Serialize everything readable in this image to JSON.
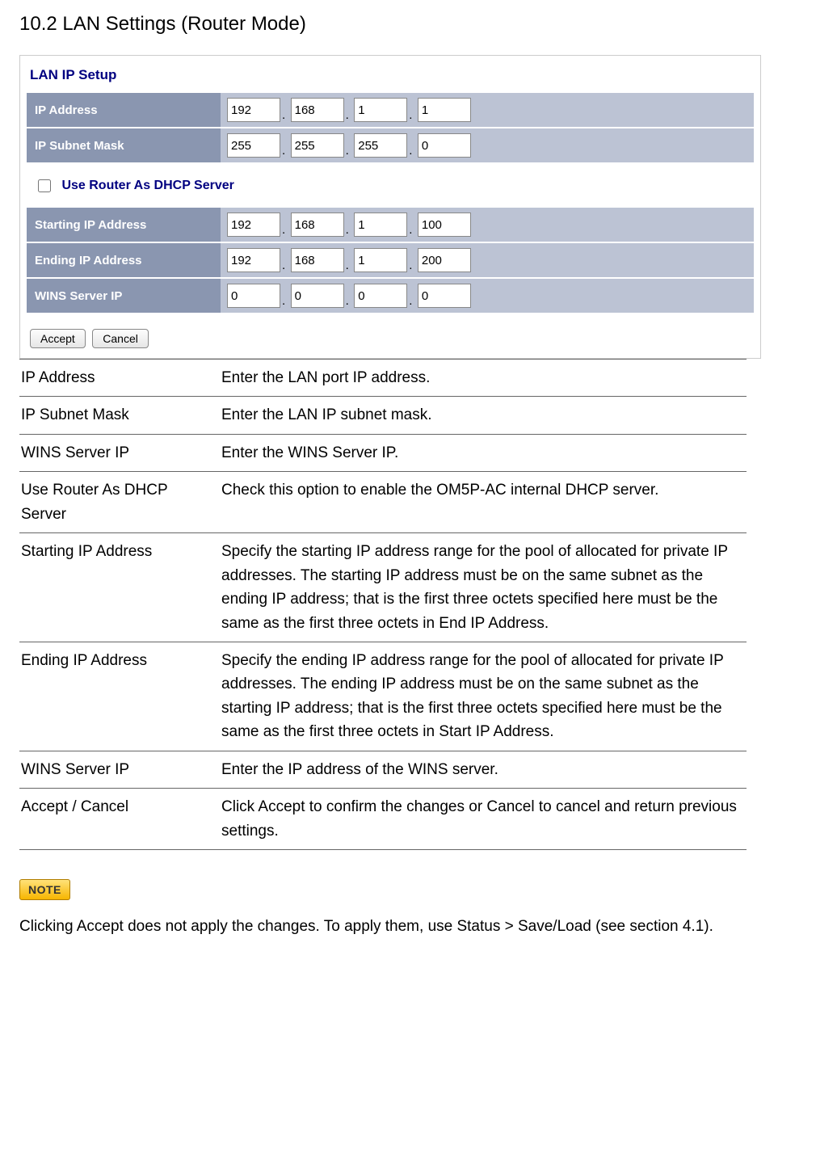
{
  "heading": "10.2 LAN Settings (Router Mode)",
  "panel": {
    "title": "LAN IP Setup",
    "ip_address": {
      "label": "IP Address",
      "o1": "192",
      "o2": "168",
      "o3": "1",
      "o4": "1"
    },
    "subnet_mask": {
      "label": "IP Subnet Mask",
      "o1": "255",
      "o2": "255",
      "o3": "255",
      "o4": "0"
    },
    "dhcp_checkbox_label": "Use Router As DHCP Server",
    "starting_ip": {
      "label": "Starting IP Address",
      "o1": "192",
      "o2": "168",
      "o3": "1",
      "o4": "100"
    },
    "ending_ip": {
      "label": "Ending IP Address",
      "o1": "192",
      "o2": "168",
      "o3": "1",
      "o4": "200"
    },
    "wins_ip": {
      "label": "WINS Server IP",
      "o1": "0",
      "o2": "0",
      "o3": "0",
      "o4": "0"
    },
    "accept_btn": "Accept",
    "cancel_btn": "Cancel"
  },
  "desc": {
    "r1": {
      "term": "IP Address",
      "text": "Enter the LAN port IP address."
    },
    "r2": {
      "term": "IP Subnet Mask",
      "text": "Enter the LAN IP subnet mask."
    },
    "r3": {
      "term": "WINS Server IP",
      "text": "Enter the WINS Server IP."
    },
    "r4": {
      "term": "Use Router As DHCP Server",
      "text": "Check this option to enable the OM5P-AC internal DHCP server."
    },
    "r5": {
      "term": "Starting IP Address",
      "text": "Specify the starting IP address range for the pool of allocated for private IP addresses. The starting IP address must be on the same subnet as the ending IP address; that is the first three octets specified here must be the same as the first three octets in End IP Address."
    },
    "r6": {
      "term": "Ending IP Address",
      "text": "Specify the ending IP address range for the pool of allocated for private IP addresses. The ending IP address must be on the same subnet as the starting IP address; that is the first three octets specified here must be the same as the first three octets in Start IP Address."
    },
    "r7": {
      "term": "WINS Server IP",
      "text": "Enter the IP address of the WINS server."
    },
    "r8": {
      "term": "Accept / Cancel",
      "text": "Click Accept to confirm the changes or Cancel to cancel and return previous settings."
    }
  },
  "note": {
    "badge": "NOTE",
    "text": "Clicking Accept does not apply the changes. To apply them, use Status > Save/Load (see section 4.1)."
  }
}
